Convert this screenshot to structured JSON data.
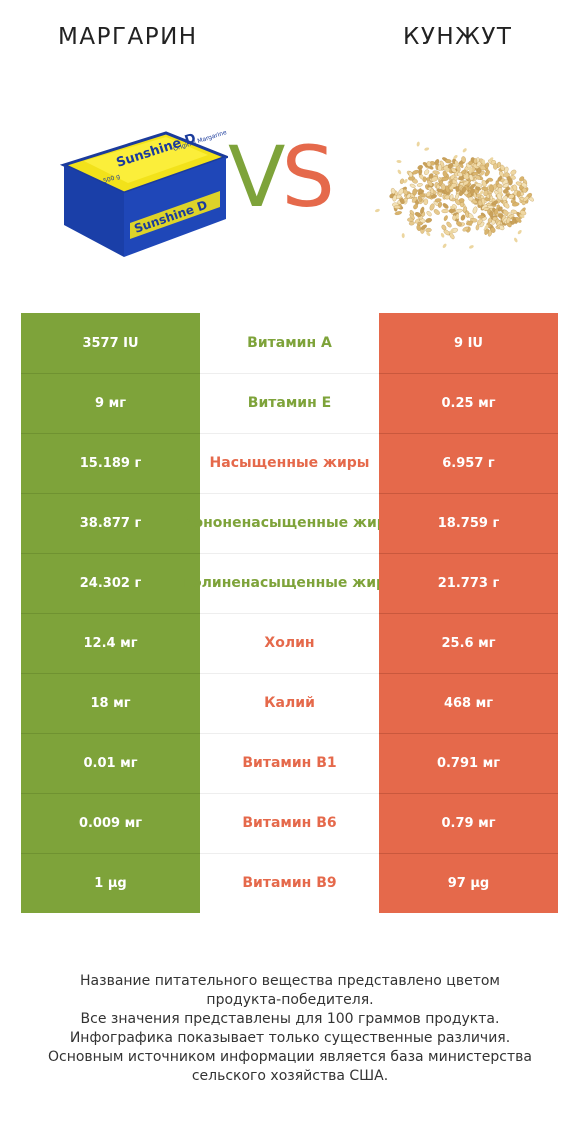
{
  "header": {
    "left_title": "МАРГАРИН",
    "right_title": "КУНЖУТ",
    "vs_v": "V",
    "vs_s": "S"
  },
  "images": {
    "left": {
      "alt": "margarine-package",
      "brand_text": "Sunshine D",
      "sub_text": "Original Margarine",
      "weight": "500 g"
    },
    "right": {
      "alt": "sesame-seeds-pile"
    }
  },
  "colors": {
    "left_product": "#7ea33a",
    "right_product": "#e5694b"
  },
  "rows": [
    {
      "left": "3577 IU",
      "nutrient": "Витамин A",
      "right": "9 IU",
      "winner": "left"
    },
    {
      "left": "9 мг",
      "nutrient": "Витамин E",
      "right": "0.25 мг",
      "winner": "left"
    },
    {
      "left": "15.189 г",
      "nutrient": "Насыщенные жиры",
      "right": "6.957 г",
      "winner": "right"
    },
    {
      "left": "38.877 г",
      "nutrient": "Мононенасыщенные жиры",
      "right": "18.759 г",
      "winner": "left"
    },
    {
      "left": "24.302 г",
      "nutrient": "Полиненасыщенные жиры",
      "right": "21.773 г",
      "winner": "left"
    },
    {
      "left": "12.4 мг",
      "nutrient": "Холин",
      "right": "25.6 мг",
      "winner": "right"
    },
    {
      "left": "18 мг",
      "nutrient": "Калий",
      "right": "468 мг",
      "winner": "right"
    },
    {
      "left": "0.01 мг",
      "nutrient": "Витамин B1",
      "right": "0.791 мг",
      "winner": "right"
    },
    {
      "left": "0.009 мг",
      "nutrient": "Витамин B6",
      "right": "0.79 мг",
      "winner": "right"
    },
    {
      "left": "1 µg",
      "nutrient": "Витамин B9",
      "right": "97 µg",
      "winner": "right"
    }
  ],
  "footer": {
    "lines": [
      "Название питательного вещества представлено цветом",
      "продукта-победителя.",
      "Все значения представлены для 100 граммов продукта.",
      "Инфографика показывает только существенные различия.",
      "Основным источником информации является база министерства",
      "сельского хозяйства США."
    ]
  }
}
